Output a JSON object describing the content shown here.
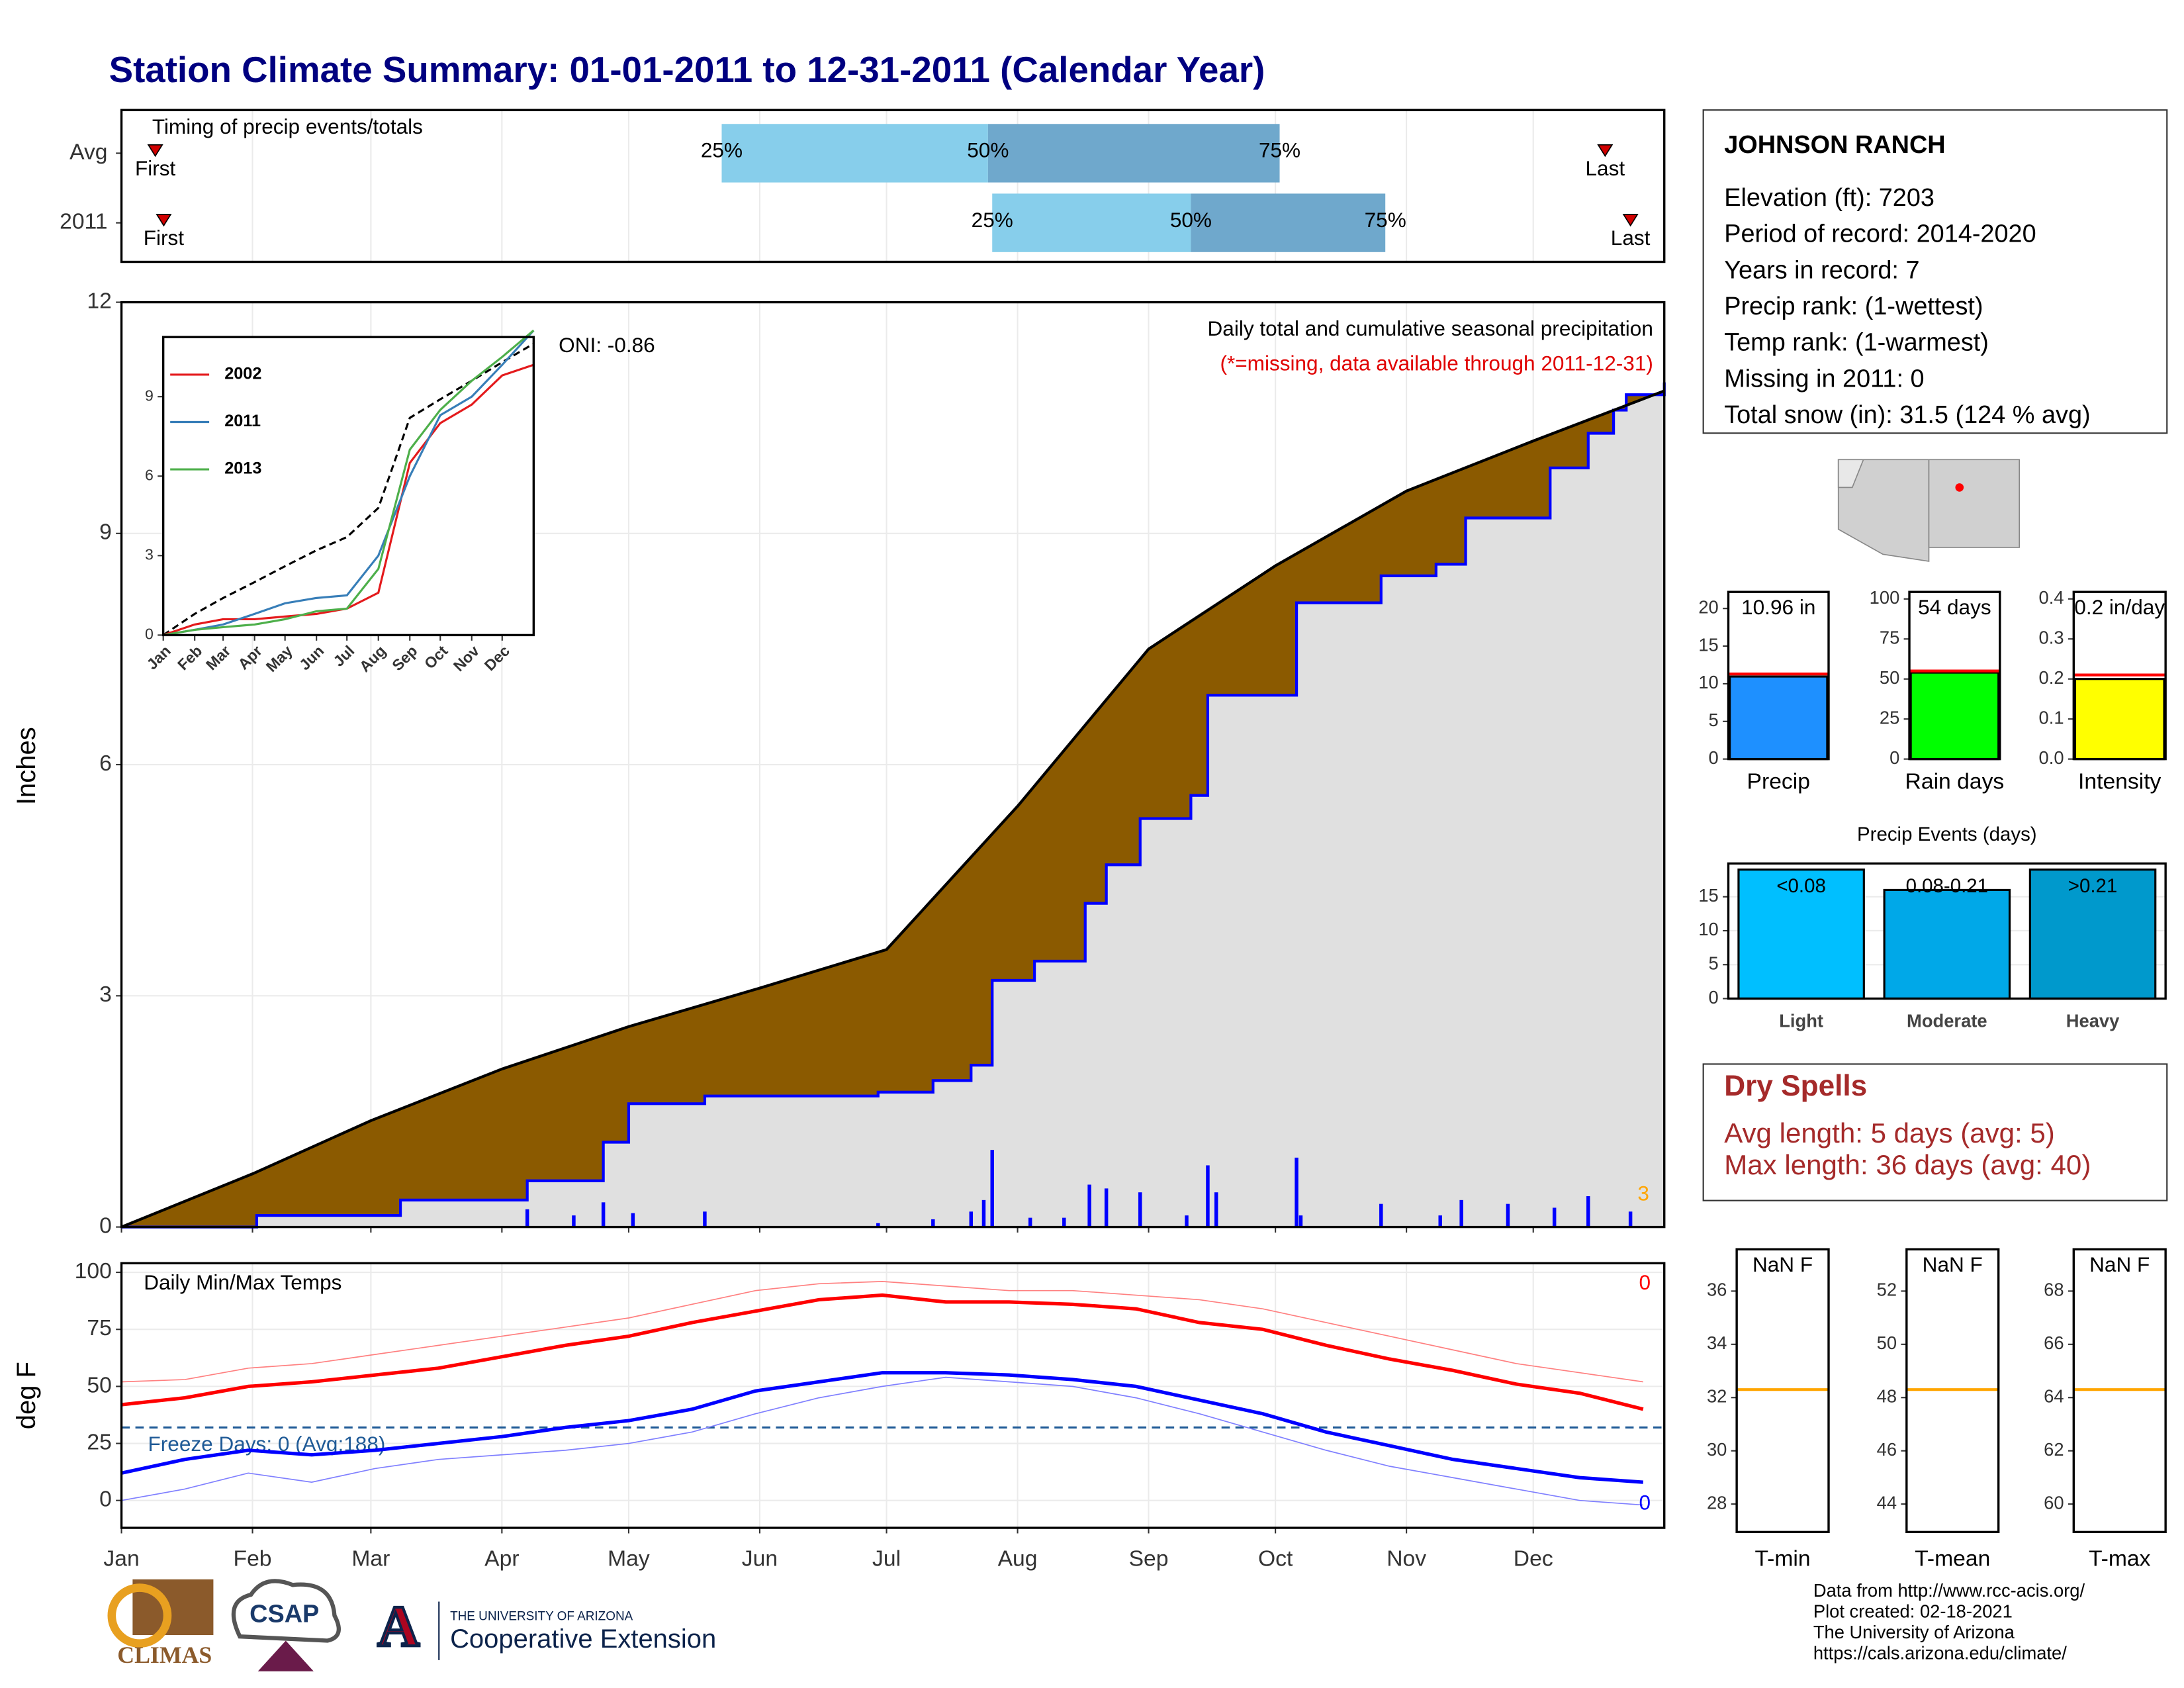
{
  "title": "Station Climate Summary: 01-01-2011 to 12-31-2011 (Calendar Year)",
  "info": {
    "station": "JOHNSON RANCH",
    "lines": [
      "Elevation (ft): 7203",
      "Period of record: 2014-2020",
      "Years in record: 7",
      "Precip rank:  (1-wettest)",
      "Temp rank:  (1-warmest)",
      "Missing in 2011: 0",
      "Total snow (in): 31.5 (124 % avg)"
    ]
  },
  "dry_spells": {
    "title": "Dry Spells",
    "lines": [
      "Avg length: 5 days (avg: 5)",
      "Max length: 36 days (avg: 40)"
    ]
  },
  "footer": [
    "Data from http://www.rcc-acis.org/",
    "Plot created: 02-18-2021",
    "The University of Arizona",
    "https://cals.arizona.edu/climate/"
  ],
  "logos": {
    "climas": "CLIMAS",
    "csap": "CSAP",
    "university": "THE UNIVERSITY OF ARIZONA",
    "extension": "Cooperative Extension"
  },
  "chart_data": [
    {
      "type": "timeline",
      "title": "Timing of precip events/totals",
      "xlim": [
        0,
        365
      ],
      "rows": [
        "Avg",
        "2011"
      ],
      "colors": [
        "#87ceeb",
        "#6fa8cc"
      ],
      "marker_color": "#d00000",
      "series": [
        {
          "name": "First",
          "values": [
            8,
            10
          ]
        },
        {
          "name": "25%",
          "values": [
            142,
            206
          ]
        },
        {
          "name": "50%",
          "values": [
            205,
            253
          ]
        },
        {
          "name": "75%",
          "values": [
            274,
            299
          ]
        },
        {
          "name": "Last",
          "values": [
            351,
            357
          ]
        }
      ]
    },
    {
      "type": "area",
      "title": "Daily total and cumulative seasonal precipitation",
      "subtitle": "(*=missing, data available through 2011-12-31)",
      "ylabel": "Inches",
      "xlim": [
        0,
        365
      ],
      "ylim": [
        0,
        12
      ],
      "yticks": [
        0,
        3,
        6,
        9,
        12
      ],
      "grid": true,
      "fill_color": "#8b5a00",
      "background": "#e0e0e0",
      "annotations": [
        {
          "text": "ONI: -0.86",
          "color": "#000000"
        },
        {
          "text": "3",
          "color": "#ffa500"
        }
      ],
      "series": [
        {
          "color": "#000000",
          "x": [
            0,
            31,
            59,
            90,
            120,
            151,
            181,
            212,
            243,
            273,
            304,
            334,
            365
          ],
          "values": [
            0,
            0.69,
            1.38,
            2.05,
            2.6,
            3.1,
            3.6,
            5.46,
            7.5,
            8.58,
            9.55,
            10.2,
            10.85
          ]
        },
        {
          "color": "#0000ff",
          "x": [
            0,
            32,
            66,
            96,
            114,
            120,
            138,
            179,
            192,
            201,
            206,
            216,
            228,
            233,
            241,
            253,
            257,
            278,
            298,
            311,
            318,
            338,
            347,
            353,
            356,
            365
          ],
          "values": [
            0,
            0.15,
            0.35,
            0.6,
            1.1,
            1.6,
            1.7,
            1.75,
            1.9,
            2.1,
            3.2,
            3.45,
            4.2,
            4.7,
            5.3,
            5.6,
            6.9,
            8.1,
            8.45,
            8.6,
            9.2,
            9.85,
            10.3,
            10.6,
            10.8,
            10.96
          ]
        }
      ],
      "bars": {
        "color": "#0000ff",
        "x": [
          96,
          107,
          114,
          121,
          138,
          179,
          192,
          201,
          204,
          206,
          215,
          223,
          229,
          233,
          241,
          252,
          257,
          259,
          278,
          279,
          298,
          312,
          317,
          328,
          339,
          347,
          357
        ],
        "values": [
          0.23,
          0.15,
          0.32,
          0.18,
          0.2,
          0.05,
          0.1,
          0.2,
          0.35,
          1.0,
          0.12,
          0.12,
          0.55,
          0.5,
          0.45,
          0.15,
          0.8,
          0.45,
          0.9,
          0.15,
          0.3,
          0.15,
          0.35,
          0.3,
          0.25,
          0.4,
          0.2
        ]
      }
    },
    {
      "type": "line",
      "xlim": [
        0,
        365
      ],
      "ylim": [
        0,
        11.25
      ],
      "yticks": [
        0,
        3,
        6,
        9
      ],
      "rotate_labels": true,
      "xticks": [
        {
          "value": 0,
          "label": "Jan"
        },
        {
          "value": 31,
          "label": "Feb"
        },
        {
          "value": 59,
          "label": "Mar"
        },
        {
          "value": 90,
          "label": "Apr"
        },
        {
          "value": 120,
          "label": "May"
        },
        {
          "value": 151,
          "label": "Jun"
        },
        {
          "value": 181,
          "label": "Jul"
        },
        {
          "value": 212,
          "label": "Aug"
        },
        {
          "value": 243,
          "label": "Sep"
        },
        {
          "value": 273,
          "label": "Oct"
        },
        {
          "value": 304,
          "label": "Nov"
        },
        {
          "value": 334,
          "label": "Dec"
        }
      ],
      "x": [
        0,
        31,
        59,
        90,
        120,
        151,
        181,
        212,
        243,
        273,
        304,
        334,
        365
      ],
      "series": [
        {
          "color": "#000000",
          "dash": true,
          "width": 1.5,
          "values": [
            0,
            0.8,
            1.4,
            2.0,
            2.6,
            3.2,
            3.7,
            4.8,
            8.2,
            8.9,
            9.6,
            10.3,
            11.0
          ]
        },
        {
          "name": "2002",
          "color": "#e41a1c",
          "width": 1.5,
          "values": [
            0,
            0.4,
            0.6,
            0.6,
            0.7,
            0.8,
            1.0,
            1.6,
            6.5,
            8.0,
            8.7,
            9.8,
            10.2
          ]
        },
        {
          "name": "2011",
          "color": "#377eb8",
          "width": 1.5,
          "values": [
            0,
            0.2,
            0.4,
            0.8,
            1.2,
            1.4,
            1.5,
            3.0,
            6.0,
            8.3,
            9.0,
            10.2,
            11.5
          ]
        },
        {
          "name": "2013",
          "color": "#4daf4a",
          "width": 1.5,
          "values": [
            0,
            0.2,
            0.3,
            0.4,
            0.6,
            0.9,
            1.0,
            2.5,
            7.0,
            8.5,
            9.6,
            10.5,
            11.5
          ]
        }
      ]
    },
    {
      "type": "line",
      "title": "Daily Min/Max Temps",
      "ylabel": "deg F",
      "xlim": [
        0,
        365
      ],
      "ylim": [
        -12,
        104
      ],
      "yticks": [
        0,
        25,
        50,
        75,
        100
      ],
      "grid": true,
      "xticks": [
        {
          "value": 0,
          "label": "Jan"
        },
        {
          "value": 31,
          "label": "Feb"
        },
        {
          "value": 59,
          "label": "Mar"
        },
        {
          "value": 90,
          "label": "Apr"
        },
        {
          "value": 120,
          "label": "May"
        },
        {
          "value": 151,
          "label": "Jun"
        },
        {
          "value": 181,
          "label": "Jul"
        },
        {
          "value": 212,
          "label": "Aug"
        },
        {
          "value": 243,
          "label": "Sep"
        },
        {
          "value": 273,
          "label": "Oct"
        },
        {
          "value": 304,
          "label": "Nov"
        },
        {
          "value": 334,
          "label": "Dec"
        }
      ],
      "x": [
        0,
        15,
        30,
        45,
        60,
        75,
        90,
        105,
        120,
        135,
        150,
        165,
        180,
        195,
        210,
        225,
        240,
        255,
        270,
        285,
        300,
        315,
        330,
        345,
        360
      ],
      "series": [
        {
          "color": "#ff8080",
          "width": 0.8,
          "values": [
            52,
            53,
            58,
            60,
            64,
            68,
            72,
            76,
            80,
            86,
            92,
            95,
            96,
            94,
            92,
            92,
            90,
            88,
            84,
            78,
            72,
            66,
            60,
            56,
            52
          ]
        },
        {
          "color": "#ff0000",
          "width": 2.5,
          "values": [
            42,
            45,
            50,
            52,
            55,
            58,
            63,
            68,
            72,
            78,
            83,
            88,
            90,
            87,
            87,
            86,
            84,
            78,
            75,
            68,
            62,
            57,
            51,
            47,
            40
          ]
        },
        {
          "color": "#8080ff",
          "width": 0.8,
          "values": [
            0,
            5,
            12,
            8,
            14,
            18,
            20,
            22,
            25,
            30,
            38,
            45,
            50,
            54,
            52,
            50,
            45,
            38,
            30,
            22,
            15,
            10,
            5,
            0,
            -2
          ]
        },
        {
          "color": "#0000ff",
          "width": 2.5,
          "values": [
            12,
            18,
            22,
            20,
            22,
            25,
            28,
            32,
            35,
            40,
            48,
            52,
            56,
            56,
            55,
            53,
            50,
            44,
            38,
            30,
            24,
            18,
            14,
            10,
            8
          ]
        }
      ],
      "threshold": 32,
      "threshold_label": "Freeze Days: 0 (Avg:188)",
      "threshold_color": "#1f5a96",
      "annotations": [
        {
          "text": "0",
          "color": "#ff0000"
        },
        {
          "text": "0",
          "color": "#0000ff"
        }
      ]
    },
    {
      "type": "bar",
      "categories": [
        "Precip"
      ],
      "values": [
        10.96
      ],
      "value_labels": [
        "10.96 in"
      ],
      "avg": 11.3,
      "avg_color": "#ff0000",
      "ylim": [
        0,
        22.2
      ],
      "yticks": [
        0,
        5,
        10,
        15,
        20
      ],
      "colors": [
        "#1e90ff"
      ]
    },
    {
      "type": "bar",
      "categories": [
        "Rain days"
      ],
      "values": [
        54
      ],
      "value_labels": [
        "54 days"
      ],
      "avg": 55,
      "avg_color": "#ff0000",
      "ylim": [
        0,
        104.4
      ],
      "yticks": [
        0,
        25,
        50,
        75,
        100
      ],
      "colors": [
        "#00ff00"
      ]
    },
    {
      "type": "bar",
      "categories": [
        "Intensity"
      ],
      "values": [
        0.2
      ],
      "value_labels": [
        "0.2 in/day"
      ],
      "avg": 0.21,
      "avg_color": "#ff0000",
      "ylim": [
        0,
        0.4175
      ],
      "yticks": [
        {
          "value": 0,
          "label": "0.0"
        },
        0.1,
        0.2,
        0.3,
        0.4
      ],
      "colors": [
        "#ffff00"
      ]
    },
    {
      "type": "bar",
      "title": "Precip Events (days)",
      "categories": [
        "Light",
        "Moderate",
        "Heavy"
      ],
      "bar_labels": [
        "<0.08",
        "0.08-0.21",
        ">0.21"
      ],
      "values": [
        19,
        16,
        19
      ],
      "ylim": [
        0,
        19.9
      ],
      "yticks": [
        0,
        5,
        10,
        15
      ],
      "colors": [
        "#00bfff",
        "#00a8e8",
        "#0099cc"
      ]
    },
    {
      "type": "bar",
      "categories": [
        "T-min"
      ],
      "values": [
        null
      ],
      "value_labels": [
        "NaN F"
      ],
      "avg": 32.3,
      "avg_color": "#ffa500",
      "ylim": [
        26.95,
        37.57
      ],
      "yticks": [
        28,
        30,
        32,
        34,
        36
      ],
      "colors": [
        "#ffa500"
      ]
    },
    {
      "type": "bar",
      "categories": [
        "T-mean"
      ],
      "values": [
        null
      ],
      "value_labels": [
        "NaN F"
      ],
      "avg": 48.3,
      "avg_color": "#ffa500",
      "ylim": [
        42.95,
        53.57
      ],
      "yticks": [
        44,
        46,
        48,
        50,
        52
      ],
      "colors": [
        "#ffa500"
      ]
    },
    {
      "type": "bar",
      "categories": [
        "T-max"
      ],
      "values": [
        null
      ],
      "value_labels": [
        "NaN F"
      ],
      "avg": 64.3,
      "avg_color": "#ffa500",
      "ylim": [
        58.95,
        69.57
      ],
      "yticks": [
        60,
        62,
        64,
        66,
        68
      ],
      "colors": [
        "#ffa500"
      ]
    }
  ]
}
